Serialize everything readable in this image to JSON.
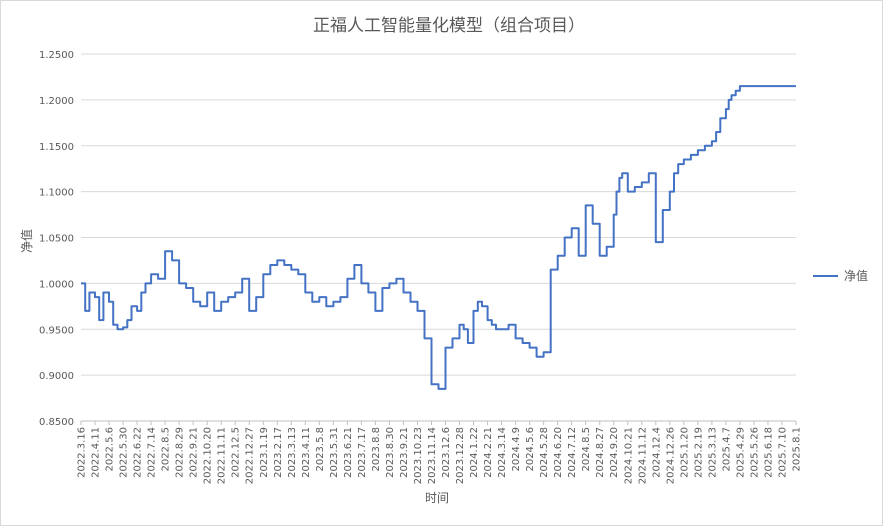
{
  "chart_data": {
    "type": "line",
    "title": "正福人工智能量化模型（组合项目）",
    "xlabel": "时间",
    "ylabel": "净值",
    "ylim": [
      0.85,
      1.25
    ],
    "yticks": [
      "0.8500",
      "0.9000",
      "0.9500",
      "1.0000",
      "1.0500",
      "1.1000",
      "1.1500",
      "1.2000",
      "1.2500"
    ],
    "grid": "horizontal",
    "legend_position": "right",
    "line_color": "#4472c4",
    "x_tick_labels": [
      "2022.3.16",
      "2022.4.11",
      "2022.5.6",
      "2022.5.30",
      "2022.6.22",
      "2022.7.14",
      "2022.8.5",
      "2022.8.29",
      "2022.9.21",
      "2022.10.20",
      "2022.11.11",
      "2022.12.5",
      "2022.12.27",
      "2023.1.19",
      "2023.2.17",
      "2023.3.13",
      "2023.4.11",
      "2023.5.8",
      "2023.5.31",
      "2023.6.21",
      "2023.7.17",
      "2023.8.8",
      "2023.8.30",
      "2023.9.21",
      "2023.10.23",
      "2023.11.14",
      "2023.12.6",
      "2023.12.28",
      "2024.1.22",
      "2024.2.21",
      "2024.3.14",
      "2024.4.9",
      "2024.5.6",
      "2024.5.28",
      "2024.6.20",
      "2024.7.12",
      "2024.8.5",
      "2024.8.27",
      "2024.9.20",
      "2024.10.21",
      "2024.11.12",
      "2024.12.4",
      "2024.12.26",
      "2025.1.20",
      "2025.2.19",
      "2025.3.13",
      "2025.4.7",
      "2025.4.29",
      "2025.5.26",
      "2025.6.18",
      "2025.7.10",
      "2025.8.1"
    ],
    "series": [
      {
        "name": "净值",
        "x": [
          0,
          0.3,
          0.6,
          1,
          1.3,
          1.6,
          2,
          2.3,
          2.6,
          3,
          3.3,
          3.6,
          4,
          4.3,
          4.6,
          5,
          5.5,
          6,
          6.5,
          7,
          7.5,
          8,
          8.5,
          9,
          9.5,
          10,
          10.5,
          11,
          11.5,
          12,
          12.5,
          13,
          13.5,
          14,
          14.5,
          15,
          15.5,
          16,
          16.5,
          17,
          17.5,
          18,
          18.5,
          19,
          19.5,
          20,
          20.5,
          21,
          21.5,
          22,
          22.5,
          23,
          23.5,
          24,
          24.5,
          25,
          25.5,
          26,
          26.5,
          27,
          27.3,
          27.6,
          28,
          28.3,
          28.6,
          29,
          29.3,
          29.6,
          30,
          30.5,
          31,
          31.5,
          32,
          32.5,
          33,
          33.5,
          34,
          34.5,
          35,
          35.5,
          36,
          36.5,
          37,
          37.5,
          38,
          38.2,
          38.4,
          38.6,
          39,
          39.5,
          40,
          40.5,
          41,
          41.5,
          42,
          42.3,
          42.6,
          43,
          43.5,
          44,
          44.5,
          45,
          45.3,
          45.6,
          46,
          46.2,
          46.4,
          46.7,
          47,
          47.5,
          48,
          48.5,
          49,
          49.5,
          50,
          50.3,
          50.6,
          51
        ],
        "values": [
          1.0,
          0.97,
          0.99,
          0.985,
          0.96,
          0.99,
          0.98,
          0.955,
          0.95,
          0.952,
          0.96,
          0.975,
          0.97,
          0.99,
          1.0,
          1.01,
          1.005,
          1.035,
          1.025,
          1.0,
          0.995,
          0.98,
          0.975,
          0.99,
          0.97,
          0.98,
          0.985,
          0.99,
          1.005,
          0.97,
          0.985,
          1.01,
          1.02,
          1.025,
          1.02,
          1.015,
          1.01,
          0.99,
          0.98,
          0.985,
          0.975,
          0.98,
          0.985,
          1.005,
          1.02,
          1.0,
          0.99,
          0.97,
          0.995,
          1.0,
          1.005,
          0.99,
          0.98,
          0.97,
          0.94,
          0.89,
          0.885,
          0.93,
          0.94,
          0.955,
          0.95,
          0.935,
          0.97,
          0.98,
          0.975,
          0.96,
          0.955,
          0.95,
          0.95,
          0.955,
          0.94,
          0.935,
          0.93,
          0.92,
          0.925,
          1.015,
          1.03,
          1.05,
          1.06,
          1.03,
          1.085,
          1.065,
          1.03,
          1.04,
          1.075,
          1.1,
          1.115,
          1.12,
          1.1,
          1.105,
          1.11,
          1.12,
          1.045,
          1.08,
          1.1,
          1.12,
          1.13,
          1.135,
          1.14,
          1.145,
          1.15,
          1.155,
          1.165,
          1.18,
          1.19,
          1.2,
          1.205,
          1.21,
          1.215,
          1.215,
          1.215,
          1.215,
          1.215,
          1.215,
          1.215,
          1.215,
          1.215,
          1.215
        ]
      }
    ]
  }
}
